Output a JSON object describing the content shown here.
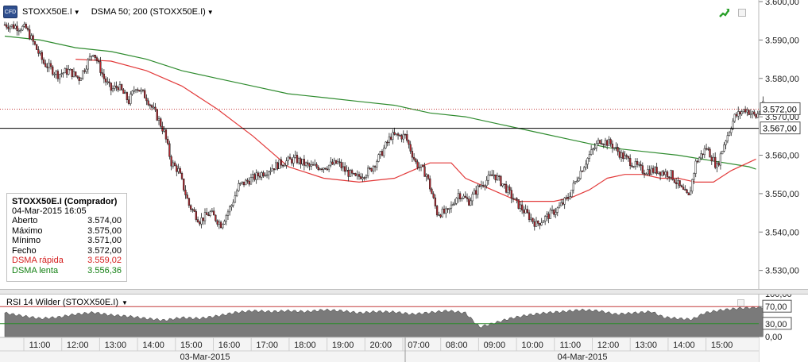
{
  "header": {
    "symbol": "STOXX50E.I",
    "indicator": "DSMA 50; 200 (STOXX50E.I)",
    "logo_text": "CFD"
  },
  "info_box": {
    "title": "STOXX50E.I (Comprador)",
    "datetime": "04-Mar-2015 16:05",
    "rows": [
      {
        "label": "Aberto",
        "value": "3.574,00"
      },
      {
        "label": "Máximo",
        "value": "3.575,00"
      },
      {
        "label": "Mínimo",
        "value": "3.571,00"
      },
      {
        "label": "Fecho",
        "value": "3.572,00"
      },
      {
        "label": "DSMA rápida",
        "value": "3.559,02"
      },
      {
        "label": "DSMA lenta",
        "value": "3.556,36"
      }
    ]
  },
  "rsi_header": {
    "title": "RSI 14 Wilder (STOXX50E.I)"
  },
  "colors": {
    "bull_candle": "#ffffff",
    "bear_candle": "#b3262e",
    "fast_ma": "#e23a3a",
    "slow_ma": "#2e8b2e",
    "price_line": "#000000",
    "last_price_line": "#c43a3a",
    "rsi_fill": "#7a7a7a",
    "rsi_upper": "#c43a3a",
    "rsi_lower": "#2e8b2e"
  },
  "chart_data": [
    {
      "type": "candlestick",
      "title": "",
      "ylim": [
        3526,
        3600
      ],
      "y_ticks": [
        "3.600,00",
        "3.590,00",
        "3.580,00",
        "3.570,00",
        "3.560,00",
        "3.550,00",
        "3.540,00",
        "3.530,00"
      ],
      "y_tick_values": [
        3600,
        3590,
        3580,
        3570,
        3560,
        3550,
        3540,
        3530
      ],
      "x_time_labels": [
        "11:00",
        "12:00",
        "13:00",
        "14:00",
        "15:00",
        "16:00",
        "17:00",
        "18:00",
        "19:00",
        "20:00",
        "07:00",
        "08:00",
        "09:00",
        "10:00",
        "11:00",
        "12:00",
        "13:00",
        "14:00",
        "15:00"
      ],
      "x_date_labels": [
        "03-Mar-2015",
        "04-Mar-2015"
      ],
      "price_tags": [
        {
          "value": 3572,
          "label": "3.572,00",
          "style": "last"
        },
        {
          "value": 3567,
          "label": "3.567,00",
          "style": "line"
        }
      ],
      "close_path": [
        [
          0,
          3594
        ],
        [
          12,
          3593
        ],
        [
          22,
          3584
        ],
        [
          30,
          3581
        ],
        [
          36,
          3582
        ],
        [
          42,
          3580
        ],
        [
          50,
          3587
        ],
        [
          56,
          3580
        ],
        [
          60,
          3577
        ],
        [
          64,
          3578
        ],
        [
          70,
          3574
        ],
        [
          74,
          3578
        ],
        [
          80,
          3575
        ],
        [
          86,
          3570
        ],
        [
          90,
          3566
        ],
        [
          94,
          3558
        ],
        [
          98,
          3556
        ],
        [
          104,
          3547
        ],
        [
          110,
          3543
        ],
        [
          116,
          3545
        ],
        [
          122,
          3542
        ],
        [
          128,
          3547
        ],
        [
          132,
          3552
        ],
        [
          140,
          3554
        ],
        [
          148,
          3556
        ],
        [
          156,
          3558
        ],
        [
          164,
          3559
        ],
        [
          172,
          3557
        ],
        [
          180,
          3557
        ],
        [
          188,
          3558
        ],
        [
          192,
          3556
        ],
        [
          198,
          3554
        ],
        [
          206,
          3556
        ],
        [
          212,
          3560
        ],
        [
          218,
          3565
        ],
        [
          226,
          3565
        ],
        [
          232,
          3558
        ],
        [
          238,
          3555
        ],
        [
          244,
          3545
        ],
        [
          250,
          3545
        ],
        [
          256,
          3550
        ],
        [
          262,
          3548
        ],
        [
          268,
          3552
        ],
        [
          276,
          3555
        ],
        [
          282,
          3552
        ],
        [
          288,
          3548
        ],
        [
          294,
          3545
        ],
        [
          300,
          3542
        ],
        [
          306,
          3544
        ],
        [
          312,
          3546
        ],
        [
          318,
          3549
        ],
        [
          324,
          3555
        ],
        [
          330,
          3560
        ],
        [
          336,
          3564
        ],
        [
          342,
          3563
        ],
        [
          348,
          3560
        ],
        [
          354,
          3558
        ],
        [
          360,
          3556
        ],
        [
          368,
          3556
        ],
        [
          376,
          3555
        ],
        [
          382,
          3551
        ],
        [
          386,
          3549
        ],
        [
          390,
          3558
        ],
        [
          396,
          3562
        ],
        [
          402,
          3557
        ],
        [
          406,
          3563
        ],
        [
          412,
          3570
        ],
        [
          418,
          3572
        ],
        [
          424,
          3570
        ],
        [
          428,
          3573
        ]
      ],
      "fast_ma_path": [
        [
          40,
          3585
        ],
        [
          60,
          3584.5
        ],
        [
          80,
          3582
        ],
        [
          100,
          3578
        ],
        [
          120,
          3572
        ],
        [
          140,
          3565
        ],
        [
          160,
          3557
        ],
        [
          180,
          3554
        ],
        [
          200,
          3553
        ],
        [
          220,
          3554
        ],
        [
          240,
          3558
        ],
        [
          252,
          3558
        ],
        [
          260,
          3554
        ],
        [
          270,
          3552
        ],
        [
          280,
          3550
        ],
        [
          290,
          3548
        ],
        [
          300,
          3548
        ],
        [
          310,
          3548
        ],
        [
          320,
          3549
        ],
        [
          330,
          3551
        ],
        [
          340,
          3554
        ],
        [
          350,
          3555
        ],
        [
          360,
          3555
        ],
        [
          370,
          3554
        ],
        [
          380,
          3554
        ],
        [
          390,
          3553
        ],
        [
          400,
          3553
        ],
        [
          410,
          3556
        ],
        [
          424,
          3559
        ]
      ],
      "slow_ma_path": [
        [
          0,
          3591
        ],
        [
          20,
          3590
        ],
        [
          40,
          3588
        ],
        [
          60,
          3587
        ],
        [
          80,
          3585
        ],
        [
          100,
          3582
        ],
        [
          120,
          3580
        ],
        [
          140,
          3578
        ],
        [
          160,
          3576
        ],
        [
          180,
          3575
        ],
        [
          200,
          3574
        ],
        [
          220,
          3573
        ],
        [
          240,
          3571
        ],
        [
          260,
          3570
        ],
        [
          280,
          3568
        ],
        [
          300,
          3566
        ],
        [
          320,
          3564
        ],
        [
          340,
          3562
        ],
        [
          360,
          3561
        ],
        [
          380,
          3560
        ],
        [
          400,
          3558.5
        ],
        [
          420,
          3557
        ],
        [
          424,
          3556.36
        ]
      ]
    },
    {
      "type": "area",
      "title": "RSI 14 Wilder (STOXX50E.I)",
      "ylim": [
        0,
        100
      ],
      "y_ticks": [
        "100,00",
        "70,00",
        "30,00",
        "0,00"
      ],
      "y_tick_values": [
        100,
        70,
        30,
        0
      ],
      "levels": [
        70,
        30
      ],
      "level_labels": [
        "70,00",
        "30,00"
      ],
      "rsi_path": [
        [
          0,
          55
        ],
        [
          10,
          48
        ],
        [
          20,
          42
        ],
        [
          30,
          45
        ],
        [
          40,
          52
        ],
        [
          50,
          56
        ],
        [
          60,
          50
        ],
        [
          70,
          47
        ],
        [
          80,
          42
        ],
        [
          90,
          38
        ],
        [
          100,
          44
        ],
        [
          110,
          42
        ],
        [
          120,
          48
        ],
        [
          130,
          56
        ],
        [
          140,
          60
        ],
        [
          150,
          58
        ],
        [
          160,
          60
        ],
        [
          170,
          58
        ],
        [
          180,
          62
        ],
        [
          190,
          60
        ],
        [
          200,
          55
        ],
        [
          210,
          58
        ],
        [
          220,
          57
        ],
        [
          230,
          52
        ],
        [
          240,
          56
        ],
        [
          250,
          60
        ],
        [
          260,
          55
        ],
        [
          268,
          22
        ],
        [
          275,
          30
        ],
        [
          285,
          42
        ],
        [
          295,
          50
        ],
        [
          305,
          55
        ],
        [
          315,
          58
        ],
        [
          325,
          62
        ],
        [
          335,
          60
        ],
        [
          345,
          52
        ],
        [
          355,
          55
        ],
        [
          365,
          58
        ],
        [
          372,
          45
        ],
        [
          380,
          42
        ],
        [
          388,
          40
        ],
        [
          395,
          55
        ],
        [
          405,
          62
        ],
        [
          415,
          66
        ],
        [
          424,
          68
        ]
      ]
    }
  ]
}
